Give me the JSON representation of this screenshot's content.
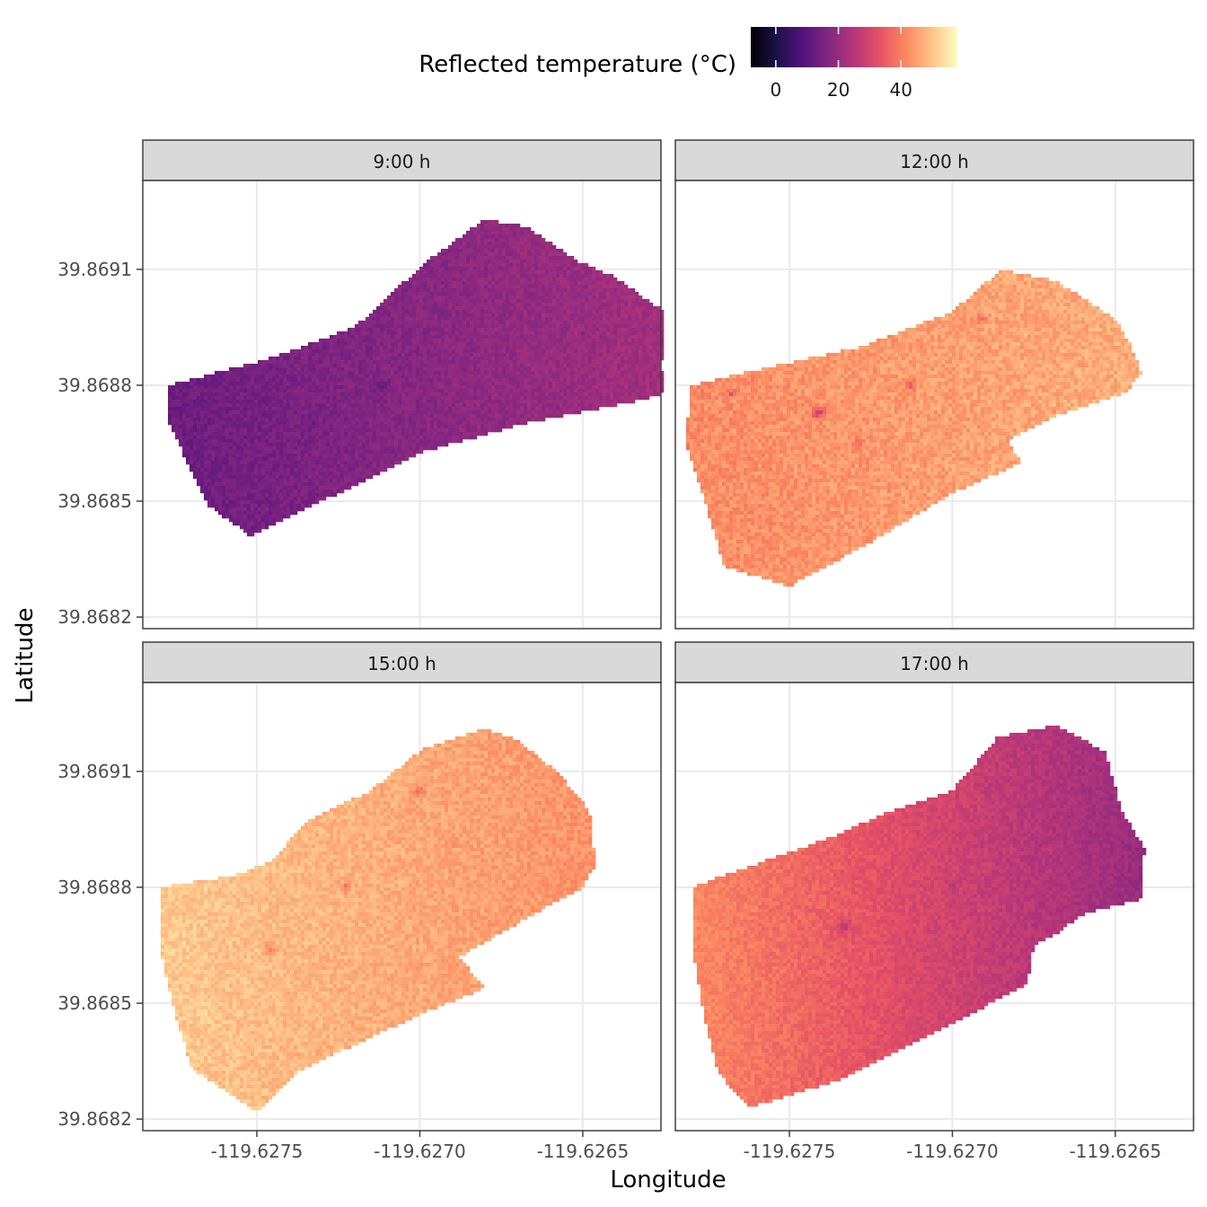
{
  "chart_data": {
    "type": "heatmap",
    "xlabel": "Longitude",
    "ylabel": "Latitude",
    "legend": {
      "title": "Reflected temperature (°C)",
      "position": "top",
      "palette": "magma",
      "range": [
        -8,
        58
      ],
      "ticks": [
        0,
        20,
        40
      ],
      "tick_labels": [
        "0",
        "20",
        "40"
      ],
      "colors": [
        "#000004",
        "#1d1147",
        "#51127c",
        "#822681",
        "#b63679",
        "#e65164",
        "#fb8861",
        "#fec287",
        "#fcfdbf"
      ]
    },
    "x_ticks": [
      -119.6275,
      -119.627,
      -119.6265
    ],
    "x_tick_labels": [
      "-119.6275",
      "-119.6270",
      "-119.6265"
    ],
    "y_ticks": [
      39.8682,
      39.8685,
      39.8688,
      39.8691
    ],
    "y_tick_labels": [
      "39.8682",
      "39.8685",
      "39.8688",
      "39.8691"
    ],
    "xlim": [
      -119.62785,
      -119.62626
    ],
    "ylim": [
      39.86817,
      39.86933
    ],
    "grid": true,
    "panels": [
      {
        "label": "9:00 h",
        "mean_temp": 17,
        "gradient_temp": [
          13,
          22
        ],
        "noise": 2.5,
        "outline": [
          [
            -119.62777,
            39.8688
          ],
          [
            -119.62746,
            39.86887
          ],
          [
            -119.6272,
            39.86895
          ],
          [
            -119.62698,
            39.86912
          ],
          [
            -119.6268,
            39.86923
          ],
          [
            -119.62667,
            39.86921
          ],
          [
            -119.62651,
            39.86912
          ],
          [
            -119.6264,
            39.86908
          ],
          [
            -119.62625,
            39.86899
          ],
          [
            -119.62622,
            39.8689
          ],
          [
            -119.62626,
            39.86886
          ],
          [
            -119.62625,
            39.86878
          ],
          [
            -119.62633,
            39.86876
          ],
          [
            -119.62668,
            39.8687
          ],
          [
            -119.62698,
            39.86863
          ],
          [
            -119.6273,
            39.8685
          ],
          [
            -119.62752,
            39.86841
          ],
          [
            -119.62765,
            39.86849
          ],
          [
            -119.62773,
            39.86863
          ],
          [
            -119.62777,
            39.8687
          ]
        ],
        "features": [
          {
            "lon": -119.62711,
            "lat": 39.8688,
            "r": 1.4e-05,
            "dt": -4
          },
          {
            "lon": -119.62733,
            "lat": 39.8687,
            "r": 1.6e-05,
            "dt": -3
          },
          {
            "lon": -119.6265,
            "lat": 39.86893,
            "r": 8e-06,
            "dt": -4
          }
        ]
      },
      {
        "label": "12:00 h",
        "mean_temp": 44,
        "gradient_temp": [
          42,
          47
        ],
        "noise": 3.5,
        "outline": [
          [
            -119.6278,
            39.8688
          ],
          [
            -119.6276,
            39.86884
          ],
          [
            -119.62728,
            39.8689
          ],
          [
            -119.627,
            39.86899
          ],
          [
            -119.62685,
            39.8691
          ],
          [
            -119.62668,
            39.86907
          ],
          [
            -119.6265,
            39.86897
          ],
          [
            -119.62645,
            39.8689
          ],
          [
            -119.62642,
            39.86883
          ],
          [
            -119.62647,
            39.86878
          ],
          [
            -119.62668,
            39.86872
          ],
          [
            -119.62683,
            39.86866
          ],
          [
            -119.62679,
            39.8686
          ],
          [
            -119.627,
            39.86852
          ],
          [
            -119.62728,
            39.86838
          ],
          [
            -119.6275,
            39.86828
          ],
          [
            -119.6277,
            39.86833
          ],
          [
            -119.62776,
            39.8685
          ],
          [
            -119.62782,
            39.86865
          ]
        ],
        "features": [
          {
            "lon": -119.62741,
            "lat": 39.86873,
            "r": 1.6e-05,
            "dt": -14
          },
          {
            "lon": -119.62713,
            "lat": 39.8688,
            "r": 1.4e-05,
            "dt": -9
          },
          {
            "lon": -119.62691,
            "lat": 39.86897,
            "r": 1.2e-05,
            "dt": -7
          },
          {
            "lon": -119.62768,
            "lat": 39.86878,
            "r": 8e-06,
            "dt": -10
          },
          {
            "lon": -119.62729,
            "lat": 39.86865,
            "r": 1.1e-05,
            "dt": -8
          }
        ]
      },
      {
        "label": "15:00 h",
        "mean_temp": 46,
        "gradient_temp": [
          51,
          43
        ],
        "noise": 3,
        "outline": [
          [
            -119.6278,
            39.8688
          ],
          [
            -119.62757,
            39.86883
          ],
          [
            -119.62745,
            39.86887
          ],
          [
            -119.62735,
            39.86897
          ],
          [
            -119.62715,
            39.86905
          ],
          [
            -119.62699,
            39.86916
          ],
          [
            -119.6268,
            39.86921
          ],
          [
            -119.6267,
            39.86918
          ],
          [
            -119.62658,
            39.8691
          ],
          [
            -119.62648,
            39.869
          ],
          [
            -119.62646,
            39.86886
          ],
          [
            -119.6265,
            39.8688
          ],
          [
            -119.62663,
            39.86874
          ],
          [
            -119.62688,
            39.86862
          ],
          [
            -119.6268,
            39.86854
          ],
          [
            -119.627,
            39.86847
          ],
          [
            -119.62736,
            39.86833
          ],
          [
            -119.6275,
            39.86822
          ],
          [
            -119.6277,
            39.86833
          ],
          [
            -119.62776,
            39.8685
          ],
          [
            -119.6278,
            39.86865
          ]
        ],
        "features": [
          {
            "lon": -119.62723,
            "lat": 39.8688,
            "r": 1.3e-05,
            "dt": -8
          },
          {
            "lon": -119.627,
            "lat": 39.86905,
            "r": 1.4e-05,
            "dt": -7
          },
          {
            "lon": -119.62746,
            "lat": 39.86864,
            "r": 1.4e-05,
            "dt": -8
          },
          {
            "lon": -119.6269,
            "lat": 39.86892,
            "r": 1.1e-05,
            "dt": -6
          }
        ]
      },
      {
        "label": "17:00 h",
        "mean_temp": 30,
        "gradient_temp": [
          42,
          20
        ],
        "noise": 2.5,
        "outline": [
          [
            -119.6278,
            39.8688
          ],
          [
            -119.62757,
            39.86887
          ],
          [
            -119.62737,
            39.86893
          ],
          [
            -119.62721,
            39.86899
          ],
          [
            -119.627,
            39.86905
          ],
          [
            -119.62686,
            39.86919
          ],
          [
            -119.62668,
            39.86922
          ],
          [
            -119.62653,
            39.86915
          ],
          [
            -119.62648,
            39.869
          ],
          [
            -119.62641,
            39.8689
          ],
          [
            -119.62642,
            39.86877
          ],
          [
            -119.6266,
            39.86873
          ],
          [
            -119.62668,
            39.86868
          ],
          [
            -119.62675,
            39.86865
          ],
          [
            -119.62677,
            39.86855
          ],
          [
            -119.62697,
            39.86846
          ],
          [
            -119.62735,
            39.8683
          ],
          [
            -119.62762,
            39.86823
          ],
          [
            -119.62772,
            39.86832
          ],
          [
            -119.62777,
            39.8685
          ],
          [
            -119.6278,
            39.86866
          ]
        ],
        "features": [
          {
            "lon": -119.62733,
            "lat": 39.8687,
            "r": 1.6e-05,
            "dt": -8
          },
          {
            "lon": -119.627,
            "lat": 39.8688,
            "r": 1.2e-05,
            "dt": -5
          }
        ]
      }
    ]
  }
}
